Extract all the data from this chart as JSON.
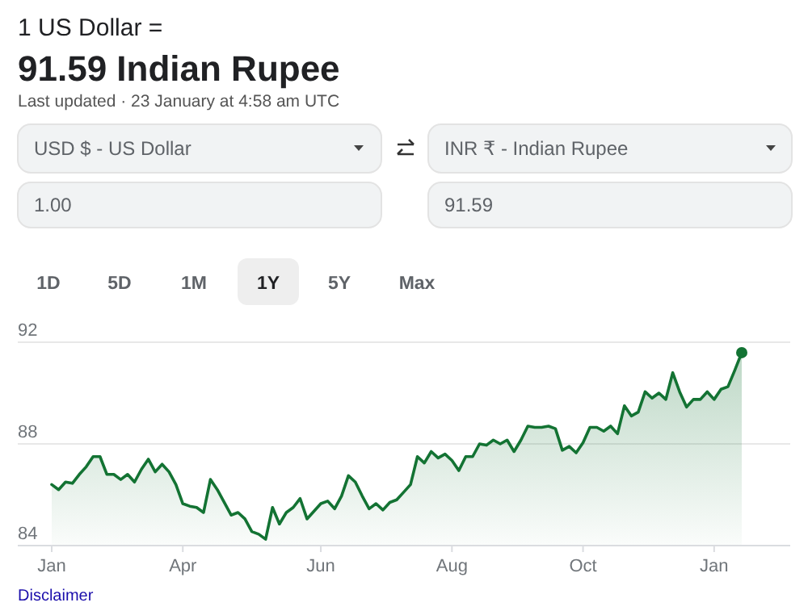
{
  "chart_data": {
    "type": "area",
    "title": "1 US Dollar =",
    "subtitle": "91.59 Indian Rupee",
    "annotations": [
      "Last updated · 23 January at 4:58 am UTC",
      "USD $ - US Dollar",
      "INR ₹ - Indian Rupee",
      "1.00",
      "91.59",
      "1D",
      "5D",
      "1M",
      "1Y",
      "5Y",
      "Max",
      "Disclaimer"
    ],
    "categories": [
      "Jan",
      null,
      null,
      null,
      null,
      null,
      null,
      null,
      null,
      null,
      null,
      null,
      null,
      null,
      null,
      null,
      null,
      null,
      null,
      "Apr",
      null,
      null,
      null,
      null,
      null,
      null,
      null,
      null,
      null,
      null,
      null,
      null,
      null,
      null,
      null,
      null,
      null,
      null,
      null,
      "Jun",
      null,
      null,
      null,
      null,
      null,
      null,
      null,
      null,
      null,
      null,
      null,
      null,
      null,
      null,
      null,
      null,
      null,
      null,
      "Aug",
      null,
      null,
      null,
      null,
      null,
      null,
      null,
      null,
      null,
      null,
      null,
      null,
      null,
      null,
      null,
      null,
      null,
      null,
      "Oct",
      null,
      null,
      null,
      null,
      null,
      null,
      null,
      null,
      null,
      null,
      null,
      null,
      null,
      null,
      null,
      null,
      null,
      null,
      "Jan",
      null,
      null,
      null,
      null
    ],
    "series": [
      {
        "color": "#137333",
        "values": [
          86.4,
          86.2,
          86.5,
          86.45,
          86.8,
          87.1,
          87.5,
          87.5,
          86.8,
          86.8,
          86.6,
          86.8,
          86.5,
          87.0,
          87.4,
          86.9,
          87.2,
          86.9,
          86.4,
          85.65,
          85.55,
          85.5,
          85.3,
          86.6,
          86.2,
          85.7,
          85.2,
          85.3,
          85.05,
          84.55,
          84.45,
          84.25,
          85.5,
          84.85,
          85.3,
          85.5,
          85.85,
          85.05,
          85.35,
          85.65,
          85.75,
          85.45,
          85.95,
          86.75,
          86.5,
          85.95,
          85.45,
          85.65,
          85.4,
          85.7,
          85.8,
          86.1,
          86.4,
          87.5,
          87.25,
          87.7,
          87.45,
          87.6,
          87.35,
          86.95,
          87.5,
          87.5,
          88.0,
          87.95,
          88.15,
          88.0,
          88.15,
          87.7,
          88.15,
          88.7,
          88.65,
          88.65,
          88.7,
          88.6,
          87.75,
          87.9,
          87.65,
          88.05,
          88.65,
          88.65,
          88.5,
          88.7,
          88.4,
          89.5,
          89.1,
          89.25,
          90.05,
          89.8,
          90.0,
          89.75,
          90.8,
          90.05,
          89.45,
          89.75,
          89.75,
          90.05,
          89.75,
          90.15,
          90.25,
          90.9,
          91.59
        ]
      }
    ],
    "ylim": [
      84,
      92
    ],
    "yticks": [
      84,
      88,
      92
    ],
    "grid": "y"
  }
}
